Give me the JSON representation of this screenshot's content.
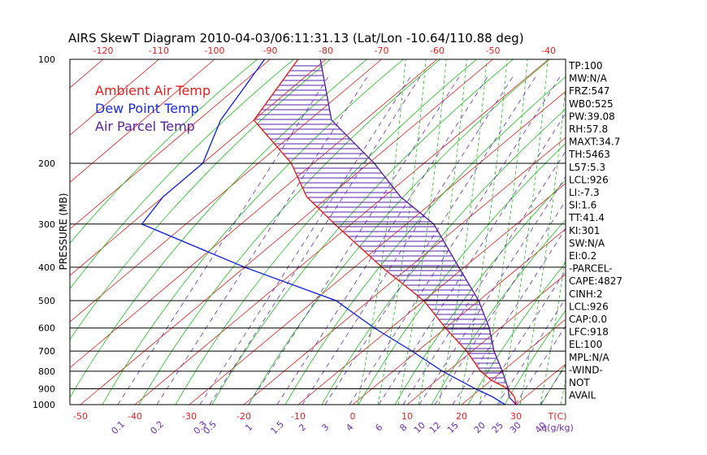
{
  "chart_data": {
    "type": "line",
    "title": "AIRS SkewT Diagram 2010-04-03/06:11:31.13 (Lat/Lon -10.64/110.88 deg)",
    "ylabel": "PRESSURE (MB)",
    "pressure_ticks": [
      "100",
      "200",
      "300",
      "400",
      "500",
      "600",
      "700",
      "800",
      "900",
      "1000"
    ],
    "pressure_levels": [
      100,
      200,
      300,
      400,
      500,
      600,
      700,
      800,
      900,
      1000
    ],
    "top_temp_ticks": [
      "-120",
      "-110",
      "-100",
      "-90",
      "-80",
      "-70",
      "-60",
      "-50",
      "-40"
    ],
    "top_temp_values": [
      -120,
      -110,
      -100,
      -90,
      -80,
      -70,
      -60,
      -50,
      -40
    ],
    "bottom_temp_ticks": [
      "-50",
      "-40",
      "-30",
      "-20",
      "-10",
      "0",
      "10",
      "20",
      "30"
    ],
    "bottom_temp_values": [
      -50,
      -40,
      -30,
      -20,
      -10,
      0,
      10,
      20,
      30
    ],
    "bottom_temp_unit": "T(C)",
    "mixing_ratio_ticks": [
      "0.1",
      "0.2",
      "0.3",
      "0.5",
      "1",
      "1.5",
      "2",
      "3",
      "4",
      "6",
      "8",
      "10",
      "12",
      "15",
      "20",
      "25",
      "30",
      "40"
    ],
    "mixing_ratio_unit": "q(g/kg)",
    "legend": [
      {
        "label": "Ambient Air Temp",
        "color": "#e8201c"
      },
      {
        "label": "Dew Point Temp",
        "color": "#1b2be0"
      },
      {
        "label": "Air Parcel Temp",
        "color": "#5a20a8"
      }
    ],
    "series": [
      {
        "name": "Ambient Air Temp",
        "color": "#e8201c",
        "points": [
          [
            100,
            -85
          ],
          [
            150,
            -80
          ],
          [
            200,
            -64
          ],
          [
            250,
            -54
          ],
          [
            300,
            -43
          ],
          [
            400,
            -25
          ],
          [
            500,
            -10
          ],
          [
            600,
            0
          ],
          [
            700,
            9
          ],
          [
            800,
            16
          ],
          [
            850,
            20
          ],
          [
            900,
            25
          ],
          [
            950,
            28
          ],
          [
            1000,
            30
          ]
        ]
      },
      {
        "name": "Dew Point Temp",
        "color": "#1b2be0",
        "points": [
          [
            100,
            -91
          ],
          [
            150,
            -86
          ],
          [
            200,
            -80
          ],
          [
            250,
            -80
          ],
          [
            300,
            -78
          ],
          [
            400,
            -50
          ],
          [
            500,
            -26
          ],
          [
            600,
            -13
          ],
          [
            700,
            -1
          ],
          [
            800,
            9
          ],
          [
            900,
            19
          ],
          [
            950,
            24
          ],
          [
            1000,
            28
          ]
        ]
      },
      {
        "name": "Air Parcel Temp",
        "color": "#5a20a8",
        "points": [
          [
            100,
            -81
          ],
          [
            150,
            -66
          ],
          [
            200,
            -49
          ],
          [
            250,
            -37
          ],
          [
            300,
            -25
          ],
          [
            400,
            -11
          ],
          [
            500,
            0
          ],
          [
            600,
            8
          ],
          [
            700,
            14
          ],
          [
            800,
            20
          ],
          [
            900,
            25
          ],
          [
            950,
            27
          ],
          [
            1000,
            30
          ]
        ]
      }
    ]
  },
  "indices": [
    "TP:100",
    "MW:N/A",
    "FRZ:547",
    "WB0:525",
    "PW:39.08",
    "RH:57.8",
    "MAXT:34.7",
    "TH:5463",
    "L57:5.3",
    "LCL:926",
    "LI:-7.3",
    "SI:1.6",
    "TT:41.4",
    "KI:301",
    "SW:N/A",
    "EI:0.2",
    "-PARCEL-",
    "CAPE:4827",
    "CINH:2",
    "LCL:926",
    "CAP:0.0",
    "LFC:918",
    "EL:100",
    "MPL:N/A",
    "-WIND-",
    "NOT",
    "AVAIL"
  ]
}
